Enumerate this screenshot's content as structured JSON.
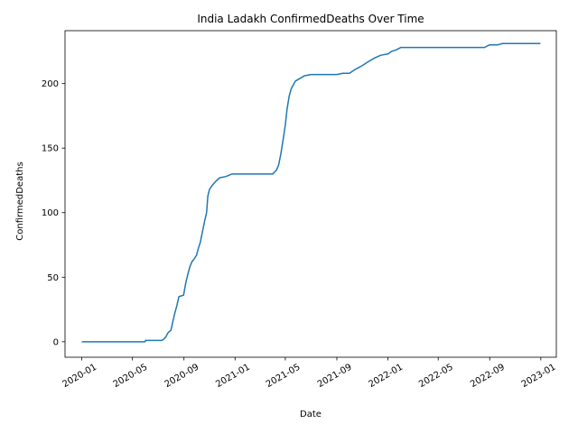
{
  "chart_data": {
    "type": "line",
    "title": "India Ladakh ConfirmedDeaths Over Time",
    "xlabel": "Date",
    "ylabel": "ConfirmedDeaths",
    "xlim": [
      "2019-11-22",
      "2023-02-07"
    ],
    "ylim": [
      -12,
      241
    ],
    "grid": false,
    "x_ticks": [
      "2020-01",
      "2020-05",
      "2020-09",
      "2021-01",
      "2021-05",
      "2021-09",
      "2022-01",
      "2022-05",
      "2022-09",
      "2023-01"
    ],
    "y_ticks": [
      0,
      50,
      100,
      150,
      200
    ],
    "series": [
      {
        "color": "#1f77b4",
        "points": [
          [
            "2020-01-01",
            0
          ],
          [
            "2020-05-31",
            0
          ],
          [
            "2020-06-01",
            1
          ],
          [
            "2020-07-10",
            1
          ],
          [
            "2020-07-15",
            2
          ],
          [
            "2020-07-20",
            4
          ],
          [
            "2020-07-25",
            7
          ],
          [
            "2020-08-01",
            9
          ],
          [
            "2020-08-05",
            15
          ],
          [
            "2020-08-10",
            22
          ],
          [
            "2020-08-15",
            28
          ],
          [
            "2020-08-20",
            35
          ],
          [
            "2020-08-31",
            36
          ],
          [
            "2020-09-05",
            45
          ],
          [
            "2020-09-10",
            52
          ],
          [
            "2020-09-15",
            58
          ],
          [
            "2020-09-20",
            62
          ],
          [
            "2020-09-25",
            64
          ],
          [
            "2020-10-01",
            67
          ],
          [
            "2020-10-05",
            72
          ],
          [
            "2020-10-10",
            77
          ],
          [
            "2020-10-15",
            85
          ],
          [
            "2020-10-20",
            93
          ],
          [
            "2020-10-25",
            100
          ],
          [
            "2020-10-28",
            113
          ],
          [
            "2020-11-01",
            118
          ],
          [
            "2020-11-07",
            121
          ],
          [
            "2020-11-15",
            124
          ],
          [
            "2020-11-25",
            127
          ],
          [
            "2020-12-10",
            128
          ],
          [
            "2020-12-25",
            130
          ],
          [
            "2021-02-01",
            130
          ],
          [
            "2021-03-01",
            130
          ],
          [
            "2021-04-01",
            130
          ],
          [
            "2021-04-10",
            133
          ],
          [
            "2021-04-15",
            137
          ],
          [
            "2021-04-20",
            145
          ],
          [
            "2021-04-25",
            155
          ],
          [
            "2021-05-01",
            168
          ],
          [
            "2021-05-05",
            180
          ],
          [
            "2021-05-10",
            190
          ],
          [
            "2021-05-15",
            196
          ],
          [
            "2021-05-20",
            199
          ],
          [
            "2021-05-25",
            202
          ],
          [
            "2021-06-05",
            204
          ],
          [
            "2021-06-15",
            206
          ],
          [
            "2021-07-01",
            207
          ],
          [
            "2021-08-01",
            207
          ],
          [
            "2021-09-01",
            207
          ],
          [
            "2021-09-15",
            208
          ],
          [
            "2021-10-01",
            208
          ],
          [
            "2021-10-15",
            211
          ],
          [
            "2021-11-01",
            214
          ],
          [
            "2021-11-15",
            217
          ],
          [
            "2021-12-01",
            220
          ],
          [
            "2021-12-15",
            222
          ],
          [
            "2022-01-01",
            223
          ],
          [
            "2022-01-10",
            225
          ],
          [
            "2022-01-20",
            226
          ],
          [
            "2022-02-01",
            228
          ],
          [
            "2022-03-01",
            228
          ],
          [
            "2022-05-01",
            228
          ],
          [
            "2022-07-01",
            228
          ],
          [
            "2022-08-20",
            228
          ],
          [
            "2022-08-25",
            229
          ],
          [
            "2022-09-01",
            230
          ],
          [
            "2022-09-20",
            230
          ],
          [
            "2022-10-01",
            231
          ],
          [
            "2022-12-31",
            231
          ]
        ]
      }
    ]
  }
}
